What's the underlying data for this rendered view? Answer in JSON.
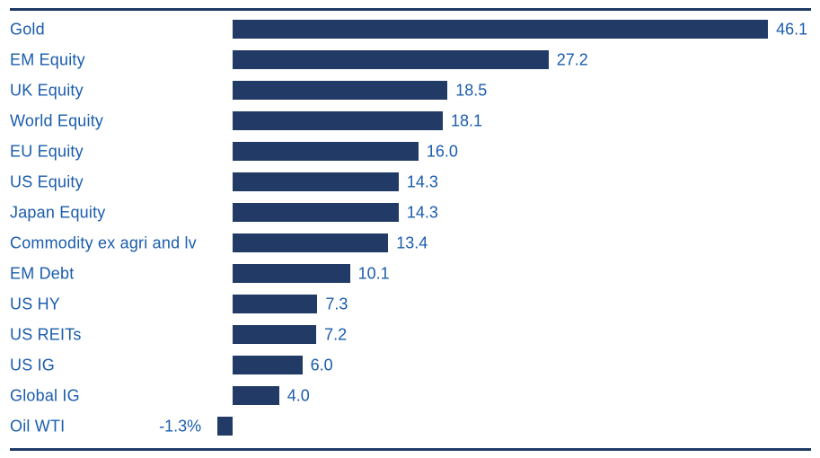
{
  "chart_data": {
    "type": "bar",
    "orientation": "horizontal",
    "title": "",
    "xlabel": "",
    "ylabel": "",
    "grid": false,
    "legend": false,
    "categories": [
      "Gold",
      "EM Equity",
      "UK Equity",
      "World Equity",
      "EU Equity",
      "US Equity",
      "Japan Equity",
      "Commodity ex agri and lv",
      "EM Debt",
      "US HY",
      "US REITs",
      "US IG",
      "Global IG",
      "Oil WTI"
    ],
    "values": [
      46.1,
      27.2,
      18.5,
      18.1,
      16.0,
      14.3,
      14.3,
      13.4,
      10.1,
      7.3,
      7.2,
      6.0,
      4.0,
      -1.3
    ],
    "value_labels": [
      "46.1",
      "27.2",
      "18.5",
      "18.1",
      "16.0",
      "14.3",
      "14.3",
      "13.4",
      "10.1",
      "7.3",
      "7.2",
      "6.0",
      "4.0",
      "-1.3%"
    ],
    "xlim": [
      -1.5,
      50
    ],
    "colors": {
      "bar": "#213a66",
      "label_text": "#1a5cad",
      "value_text": "#1a5cad",
      "rule": "#1f3a66",
      "background": "#ffffff"
    }
  },
  "layout_notes": {
    "top_rule": true,
    "bottom_rule": true
  }
}
